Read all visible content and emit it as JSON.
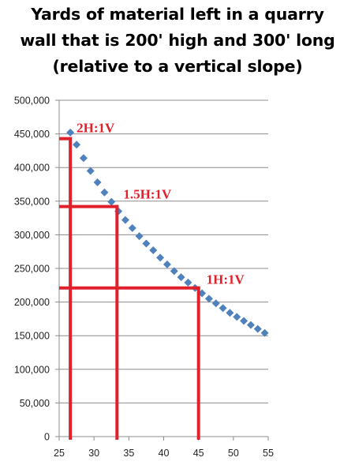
{
  "title_lines": [
    "Yards of material left in a quarry",
    "wall that is 200' high and 300' long",
    "(relative to a vertical slope)"
  ],
  "chart_data": {
    "type": "scatter",
    "title": "Yards of material left in a quarry wall that is 200' high and 300' long (relative to a vertical slope)",
    "xlabel": "",
    "ylabel": "",
    "xlim": [
      25,
      55
    ],
    "ylim": [
      0,
      500000
    ],
    "x_ticks": [
      25,
      30,
      35,
      40,
      45,
      50,
      55
    ],
    "y_ticks": [
      0,
      50000,
      100000,
      150000,
      200000,
      250000,
      300000,
      350000,
      400000,
      450000,
      500000
    ],
    "y_tick_labels": [
      "0",
      "50,000",
      "100,000",
      "150,000",
      "200,000",
      "250,000",
      "300,000",
      "350,000",
      "400,000",
      "450,000",
      "500,000"
    ],
    "grid": true,
    "marker_color": "#4f81bd",
    "annotation_color": "#e0202a",
    "series": [
      {
        "x": [
          26.6,
          27.5,
          28.5,
          29.5,
          30.5,
          31.5,
          32.5,
          33.5,
          34.5,
          35.5,
          36.5,
          37.5,
          38.5,
          39.5,
          40.5,
          41.5,
          42.5,
          43.5,
          44.5,
          45.5,
          46.5,
          47.5,
          48.5,
          49.5,
          50.5,
          51.5,
          52.5,
          53.5,
          54.5
        ],
        "values": [
          452000,
          434000,
          414000,
          395000,
          378000,
          363000,
          349000,
          335000,
          322000,
          310000,
          298000,
          287000,
          277000,
          266000,
          256000,
          246000,
          237000,
          229000,
          221000,
          213000,
          205000,
          198000,
          191000,
          184000,
          178000,
          172000,
          166000,
          160000,
          154000
        ]
      }
    ],
    "annotations": [
      {
        "label": "2H:1V",
        "x": 26.6,
        "y": 443000
      },
      {
        "label": "1.5H:1V",
        "x": 33.3,
        "y": 342000
      },
      {
        "label": "1H:1V",
        "x": 45,
        "y": 221000
      }
    ]
  }
}
